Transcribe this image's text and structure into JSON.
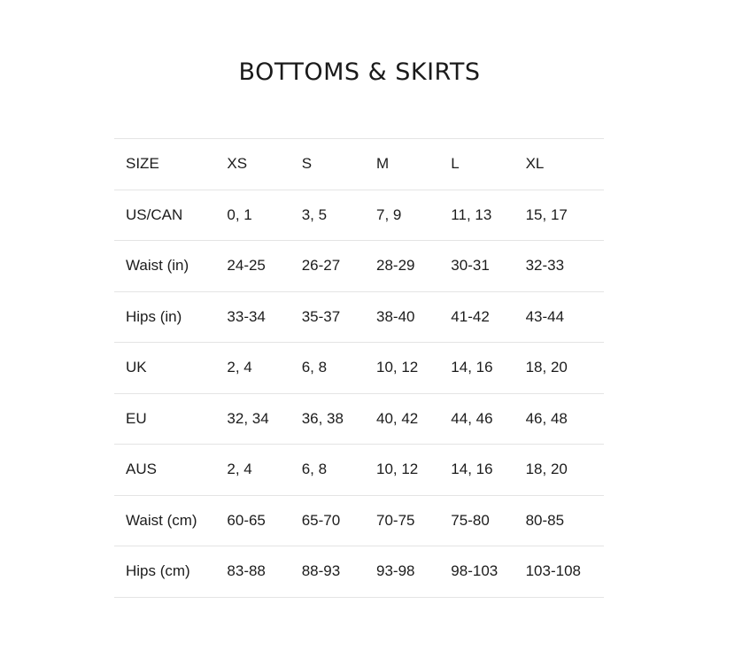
{
  "title": "BOTTOMS & SKIRTS",
  "table": {
    "rows": [
      [
        "SIZE",
        "XS",
        "S",
        "M",
        "L",
        "XL"
      ],
      [
        "US/CAN",
        "0, 1",
        "3, 5",
        "7, 9",
        "11, 13",
        "15, 17"
      ],
      [
        "Waist (in)",
        "24-25",
        "26-27",
        "28-29",
        "30-31",
        "32-33"
      ],
      [
        "Hips (in)",
        "33-34",
        "35-37",
        "38-40",
        "41-42",
        "43-44"
      ],
      [
        "UK",
        "2, 4",
        "6, 8",
        "10, 12",
        "14, 16",
        "18, 20"
      ],
      [
        "EU",
        "32, 34",
        "36, 38",
        "40, 42",
        "44, 46",
        "46, 48"
      ],
      [
        "AUS",
        "2, 4",
        "6, 8",
        "10, 12",
        "14, 16",
        "18, 20"
      ],
      [
        "Waist (cm)",
        "60-65",
        "65-70",
        "70-75",
        "75-80",
        "80-85"
      ],
      [
        "Hips (cm)",
        "83-88",
        "88-93",
        "93-98",
        "98-103",
        "103-108"
      ]
    ]
  }
}
